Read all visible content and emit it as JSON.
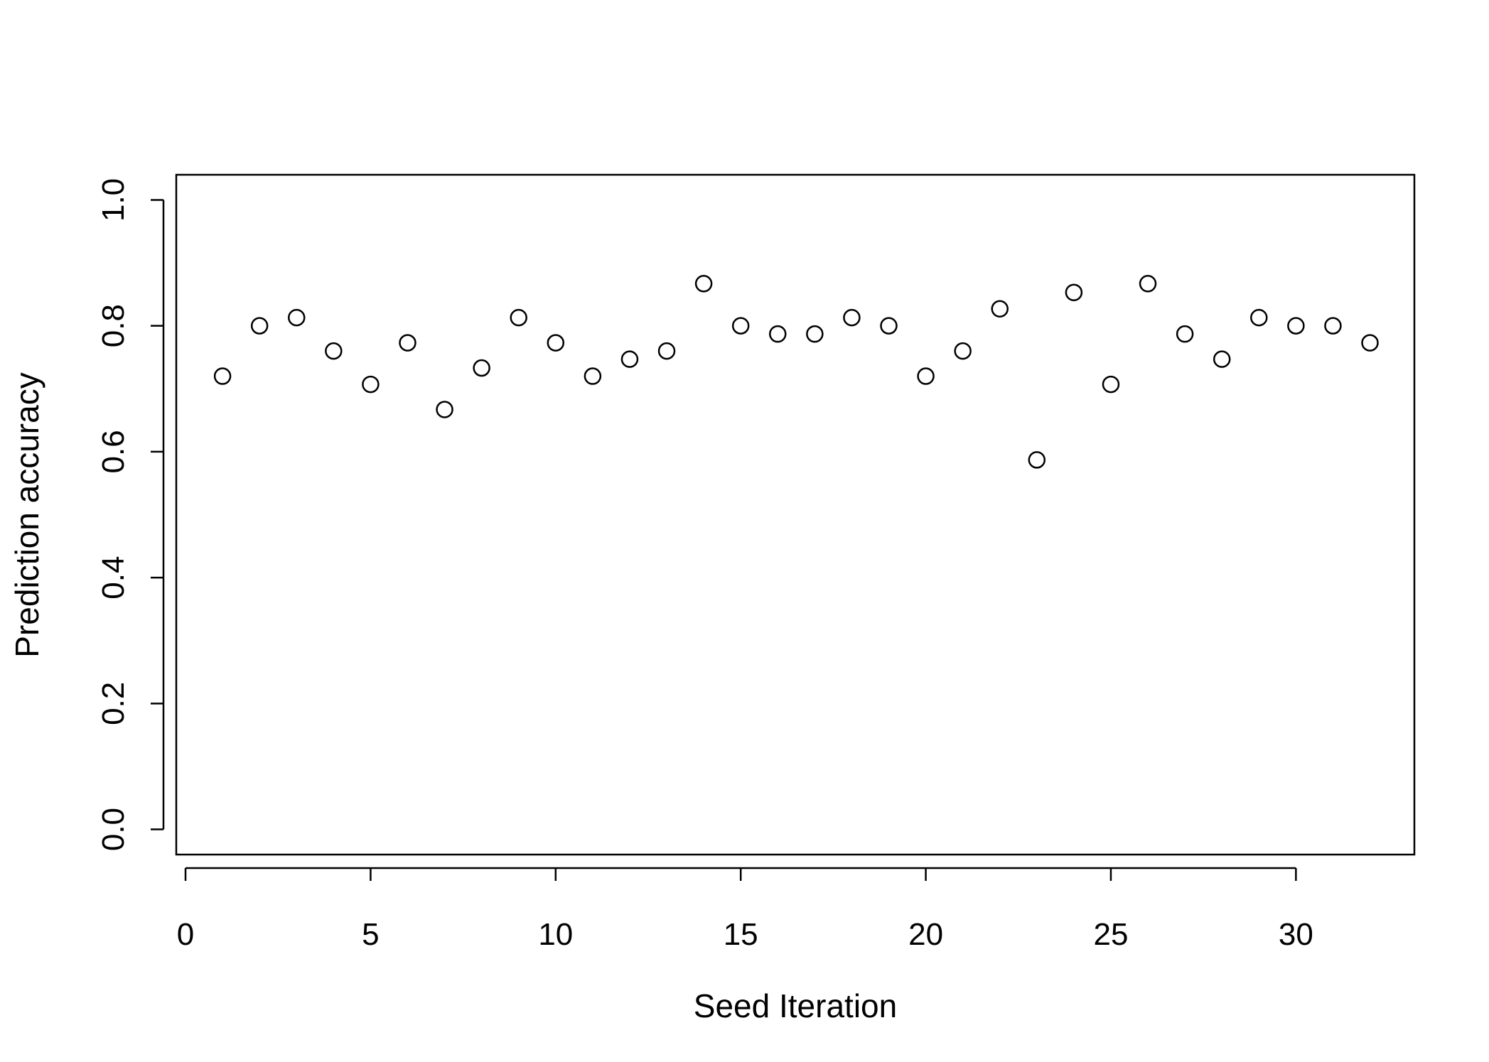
{
  "chart_data": {
    "type": "scatter",
    "title": "",
    "xlabel": "Seed Iteration",
    "ylabel": "Prediction accuracy",
    "xlim": [
      -0.25,
      33.2
    ],
    "ylim": [
      -0.04,
      1.04
    ],
    "xticks": [
      0,
      5,
      10,
      15,
      20,
      25,
      30
    ],
    "yticks": [
      0.0,
      0.2,
      0.4,
      0.6,
      0.8,
      1.0
    ],
    "xtick_labels": [
      "0",
      "5",
      "10",
      "15",
      "20",
      "25",
      "30"
    ],
    "ytick_labels": [
      "0.0",
      "0.2",
      "0.4",
      "0.6",
      "0.8",
      "1.0"
    ],
    "marker": "open-circle",
    "grid": false,
    "legend": "none",
    "series": [
      {
        "x": [
          1,
          2,
          3,
          4,
          5,
          6,
          7,
          8,
          9,
          10,
          11,
          12,
          13,
          14,
          15,
          16,
          17,
          18,
          19,
          20,
          21,
          22,
          23,
          24,
          25,
          26,
          27,
          28,
          29,
          30,
          31,
          32
        ],
        "y": [
          0.72,
          0.8,
          0.813,
          0.76,
          0.707,
          0.773,
          0.667,
          0.733,
          0.813,
          0.773,
          0.72,
          0.747,
          0.76,
          0.867,
          0.8,
          0.787,
          0.787,
          0.813,
          0.8,
          0.72,
          0.76,
          0.827,
          0.587,
          0.853,
          0.707,
          0.867,
          0.787,
          0.747,
          0.813,
          0.8,
          0.8,
          0.773
        ]
      }
    ]
  }
}
